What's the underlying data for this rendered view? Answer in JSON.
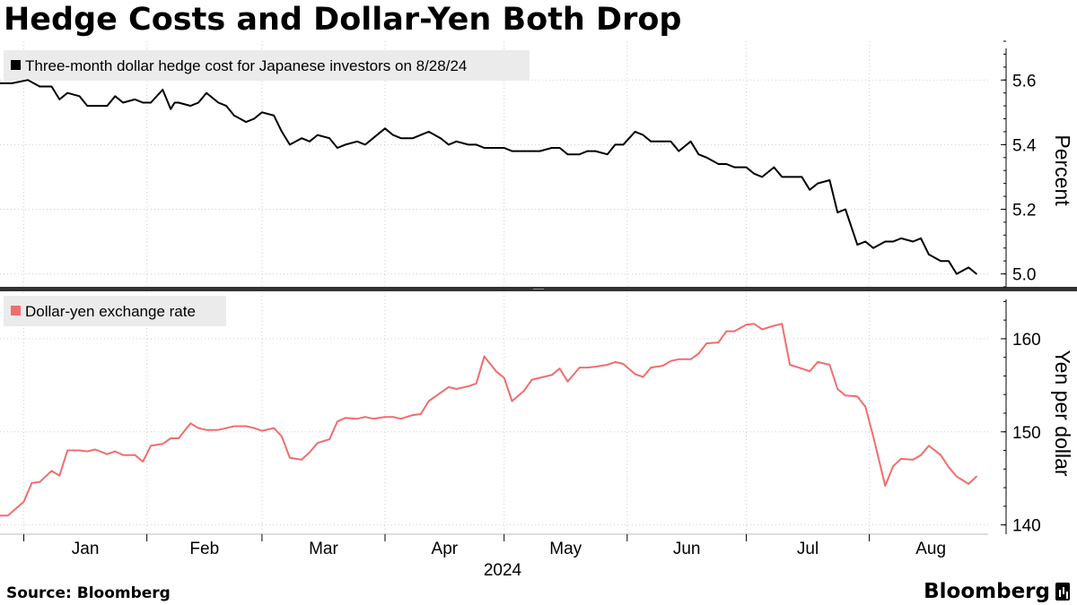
{
  "header": {
    "title": "Hedge Costs and Dollar-Yen Both Drop"
  },
  "footer": {
    "source": "Source: Bloomberg",
    "brand": "Bloomberg",
    "brand_icon": "bar-chart-icon"
  },
  "colors": {
    "hedge_line": "#000000",
    "yen_line": "#f26d6d",
    "legend_bg": "#ebebeb",
    "divider": "#333333"
  },
  "chart_data": [
    {
      "type": "line",
      "title": "",
      "legend": "Three-month dollar hedge cost for Japanese investors on 8/28/24",
      "ylabel": "Percent",
      "ylim": [
        4.96,
        5.72
      ],
      "yticks": [
        5.0,
        5.2,
        5.4,
        5.6
      ],
      "ytick_labels": [
        "5.0",
        "5.2",
        "5.4",
        "5.6"
      ],
      "grid": true,
      "legend_placement": "top-left",
      "series": [
        {
          "name": "Three-month dollar hedge cost for Japanese investors on 8/28/24",
          "x": [
            "2023-12-26",
            "2023-12-29",
            "2024-01-02",
            "2024-01-05",
            "2024-01-08",
            "2024-01-10",
            "2024-01-12",
            "2024-01-15",
            "2024-01-17",
            "2024-01-19",
            "2024-01-22",
            "2024-01-24",
            "2024-01-26",
            "2024-01-29",
            "2024-01-31",
            "2024-02-02",
            "2024-02-05",
            "2024-02-07",
            "2024-02-08",
            "2024-02-09",
            "2024-02-12",
            "2024-02-14",
            "2024-02-16",
            "2024-02-19",
            "2024-02-21",
            "2024-02-23",
            "2024-02-26",
            "2024-02-28",
            "2024-03-01",
            "2024-03-04",
            "2024-03-06",
            "2024-03-08",
            "2024-03-11",
            "2024-03-13",
            "2024-03-15",
            "2024-03-18",
            "2024-03-20",
            "2024-03-22",
            "2024-03-25",
            "2024-03-27",
            "2024-03-29",
            "2024-04-01",
            "2024-04-03",
            "2024-04-05",
            "2024-04-08",
            "2024-04-10",
            "2024-04-12",
            "2024-04-15",
            "2024-04-17",
            "2024-04-19",
            "2024-04-22",
            "2024-04-24",
            "2024-04-26",
            "2024-04-29",
            "2024-05-01",
            "2024-05-03",
            "2024-05-06",
            "2024-05-08",
            "2024-05-10",
            "2024-05-13",
            "2024-05-15",
            "2024-05-17",
            "2024-05-20",
            "2024-05-22",
            "2024-05-24",
            "2024-05-27",
            "2024-05-29",
            "2024-05-31",
            "2024-06-03",
            "2024-06-05",
            "2024-06-07",
            "2024-06-10",
            "2024-06-12",
            "2024-06-14",
            "2024-06-17",
            "2024-06-19",
            "2024-06-21",
            "2024-06-24",
            "2024-06-26",
            "2024-06-28",
            "2024-07-01",
            "2024-07-03",
            "2024-07-05",
            "2024-07-08",
            "2024-07-10",
            "2024-07-12",
            "2024-07-15",
            "2024-07-17",
            "2024-07-19",
            "2024-07-22",
            "2024-07-24",
            "2024-07-26",
            "2024-07-29",
            "2024-07-31",
            "2024-08-02",
            "2024-08-05",
            "2024-08-07",
            "2024-08-09",
            "2024-08-12",
            "2024-08-14",
            "2024-08-16",
            "2024-08-19",
            "2024-08-21",
            "2024-08-23",
            "2024-08-26",
            "2024-08-28"
          ],
          "values": [
            5.59,
            5.59,
            5.6,
            5.58,
            5.58,
            5.54,
            5.56,
            5.55,
            5.52,
            5.52,
            5.52,
            5.55,
            5.53,
            5.54,
            5.53,
            5.53,
            5.57,
            5.51,
            5.53,
            5.53,
            5.52,
            5.53,
            5.56,
            5.53,
            5.52,
            5.49,
            5.47,
            5.48,
            5.5,
            5.49,
            5.44,
            5.4,
            5.42,
            5.41,
            5.43,
            5.42,
            5.39,
            5.4,
            5.41,
            5.4,
            5.42,
            5.45,
            5.43,
            5.42,
            5.42,
            5.43,
            5.44,
            5.42,
            5.4,
            5.41,
            5.4,
            5.4,
            5.39,
            5.39,
            5.39,
            5.38,
            5.38,
            5.38,
            5.38,
            5.39,
            5.39,
            5.37,
            5.37,
            5.38,
            5.38,
            5.37,
            5.4,
            5.4,
            5.44,
            5.43,
            5.41,
            5.41,
            5.41,
            5.38,
            5.41,
            5.37,
            5.36,
            5.34,
            5.34,
            5.33,
            5.33,
            5.31,
            5.3,
            5.33,
            5.3,
            5.3,
            5.3,
            5.26,
            5.28,
            5.29,
            5.19,
            5.2,
            5.09,
            5.1,
            5.08,
            5.1,
            5.1,
            5.11,
            5.1,
            5.11,
            5.06,
            5.04,
            5.04,
            5.0,
            5.02,
            5.0
          ]
        }
      ]
    },
    {
      "type": "line",
      "title": "",
      "legend": "Dollar-yen exchange rate",
      "ylabel": "Yen per dollar",
      "ylim": [
        139,
        165
      ],
      "yticks": [
        140,
        150,
        160
      ],
      "ytick_labels": [
        "140",
        "150",
        "160"
      ],
      "xtick_labels": [
        "Jan",
        "Feb",
        "Mar",
        "Apr",
        "May",
        "Jun",
        "Jul",
        "Aug"
      ],
      "xlabel": "2024",
      "grid": true,
      "legend_placement": "top-left",
      "series": [
        {
          "name": "Dollar-yen exchange rate",
          "x": [
            "2023-12-26",
            "2023-12-28",
            "2024-01-01",
            "2024-01-03",
            "2024-01-05",
            "2024-01-08",
            "2024-01-10",
            "2024-01-12",
            "2024-01-15",
            "2024-01-17",
            "2024-01-19",
            "2024-01-22",
            "2024-01-24",
            "2024-01-26",
            "2024-01-29",
            "2024-01-31",
            "2024-02-02",
            "2024-02-05",
            "2024-02-07",
            "2024-02-09",
            "2024-02-12",
            "2024-02-14",
            "2024-02-16",
            "2024-02-19",
            "2024-02-21",
            "2024-02-23",
            "2024-02-26",
            "2024-02-28",
            "2024-03-01",
            "2024-03-04",
            "2024-03-06",
            "2024-03-08",
            "2024-03-11",
            "2024-03-13",
            "2024-03-15",
            "2024-03-18",
            "2024-03-20",
            "2024-03-22",
            "2024-03-25",
            "2024-03-27",
            "2024-03-29",
            "2024-04-01",
            "2024-04-03",
            "2024-04-05",
            "2024-04-08",
            "2024-04-10",
            "2024-04-12",
            "2024-04-15",
            "2024-04-17",
            "2024-04-19",
            "2024-04-22",
            "2024-04-24",
            "2024-04-26",
            "2024-04-29",
            "2024-05-01",
            "2024-05-03",
            "2024-05-06",
            "2024-05-08",
            "2024-05-10",
            "2024-05-13",
            "2024-05-15",
            "2024-05-17",
            "2024-05-20",
            "2024-05-22",
            "2024-05-24",
            "2024-05-27",
            "2024-05-29",
            "2024-05-31",
            "2024-06-03",
            "2024-06-05",
            "2024-06-07",
            "2024-06-10",
            "2024-06-12",
            "2024-06-14",
            "2024-06-17",
            "2024-06-19",
            "2024-06-21",
            "2024-06-24",
            "2024-06-26",
            "2024-06-28",
            "2024-07-01",
            "2024-07-03",
            "2024-07-05",
            "2024-07-08",
            "2024-07-10",
            "2024-07-12",
            "2024-07-15",
            "2024-07-17",
            "2024-07-19",
            "2024-07-22",
            "2024-07-24",
            "2024-07-26",
            "2024-07-29",
            "2024-07-31",
            "2024-08-02",
            "2024-08-05",
            "2024-08-07",
            "2024-08-09",
            "2024-08-12",
            "2024-08-14",
            "2024-08-16",
            "2024-08-19",
            "2024-08-21",
            "2024-08-23",
            "2024-08-26",
            "2024-08-28"
          ],
          "values": [
            141.0,
            141.0,
            142.5,
            144.5,
            144.6,
            145.8,
            145.3,
            148.0,
            148.0,
            147.9,
            148.1,
            147.6,
            147.9,
            147.5,
            147.5,
            146.8,
            148.5,
            148.7,
            149.3,
            149.3,
            150.9,
            150.4,
            150.2,
            150.2,
            150.4,
            150.6,
            150.6,
            150.4,
            150.1,
            150.4,
            149.5,
            147.2,
            147.0,
            147.8,
            148.8,
            149.2,
            151.1,
            151.5,
            151.4,
            151.6,
            151.4,
            151.6,
            151.6,
            151.4,
            151.8,
            151.9,
            153.3,
            154.2,
            154.8,
            154.6,
            154.9,
            155.2,
            158.1,
            156.5,
            155.8,
            153.3,
            154.4,
            155.6,
            155.8,
            156.1,
            156.8,
            155.4,
            156.9,
            156.9,
            157.0,
            157.2,
            157.5,
            157.3,
            156.2,
            155.9,
            156.9,
            157.1,
            157.6,
            157.8,
            157.8,
            158.4,
            159.5,
            159.6,
            160.8,
            160.8,
            161.5,
            161.6,
            161.0,
            161.4,
            161.6,
            157.2,
            156.8,
            156.5,
            157.5,
            157.2,
            154.6,
            153.9,
            153.8,
            152.7,
            149.5,
            144.2,
            146.3,
            147.1,
            147.0,
            147.5,
            148.5,
            147.5,
            146.2,
            145.2,
            144.4,
            145.2
          ]
        }
      ]
    }
  ]
}
